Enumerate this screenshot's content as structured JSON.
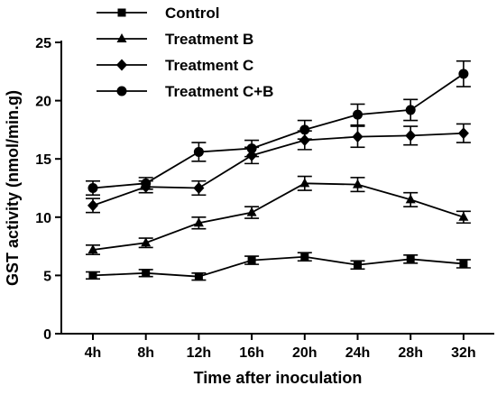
{
  "chart_data": {
    "type": "line",
    "title": "",
    "xlabel": "Time after inoculation",
    "ylabel": "GST activity (nmol/min.g)",
    "categories": [
      "4h",
      "8h",
      "12h",
      "16h",
      "20h",
      "24h",
      "28h",
      "32h"
    ],
    "ylim": [
      0,
      25
    ],
    "yticks": [
      0,
      5,
      10,
      15,
      20,
      25
    ],
    "grid": false,
    "legend_position": "top-left",
    "series": [
      {
        "name": "Control",
        "marker": "square",
        "values": [
          5.0,
          5.2,
          4.9,
          6.3,
          6.6,
          5.9,
          6.4,
          6.0
        ],
        "errors": [
          0.3,
          0.3,
          0.3,
          0.35,
          0.35,
          0.35,
          0.35,
          0.35
        ]
      },
      {
        "name": "Treatment B",
        "marker": "triangle",
        "values": [
          7.2,
          7.8,
          9.5,
          10.4,
          12.9,
          12.8,
          11.5,
          10.0
        ],
        "errors": [
          0.4,
          0.4,
          0.5,
          0.5,
          0.6,
          0.6,
          0.6,
          0.5
        ]
      },
      {
        "name": "Treatment C",
        "marker": "diamond",
        "values": [
          11.0,
          12.6,
          12.5,
          15.3,
          16.6,
          16.9,
          17.0,
          17.2
        ],
        "errors": [
          0.6,
          0.5,
          0.6,
          0.7,
          0.8,
          0.9,
          0.8,
          0.8
        ]
      },
      {
        "name": "Treatment C+B",
        "marker": "circle",
        "values": [
          12.5,
          12.9,
          15.6,
          15.9,
          17.5,
          18.8,
          19.2,
          22.3
        ],
        "errors": [
          0.6,
          0.5,
          0.8,
          0.7,
          0.8,
          0.9,
          0.9,
          1.1
        ]
      }
    ]
  }
}
